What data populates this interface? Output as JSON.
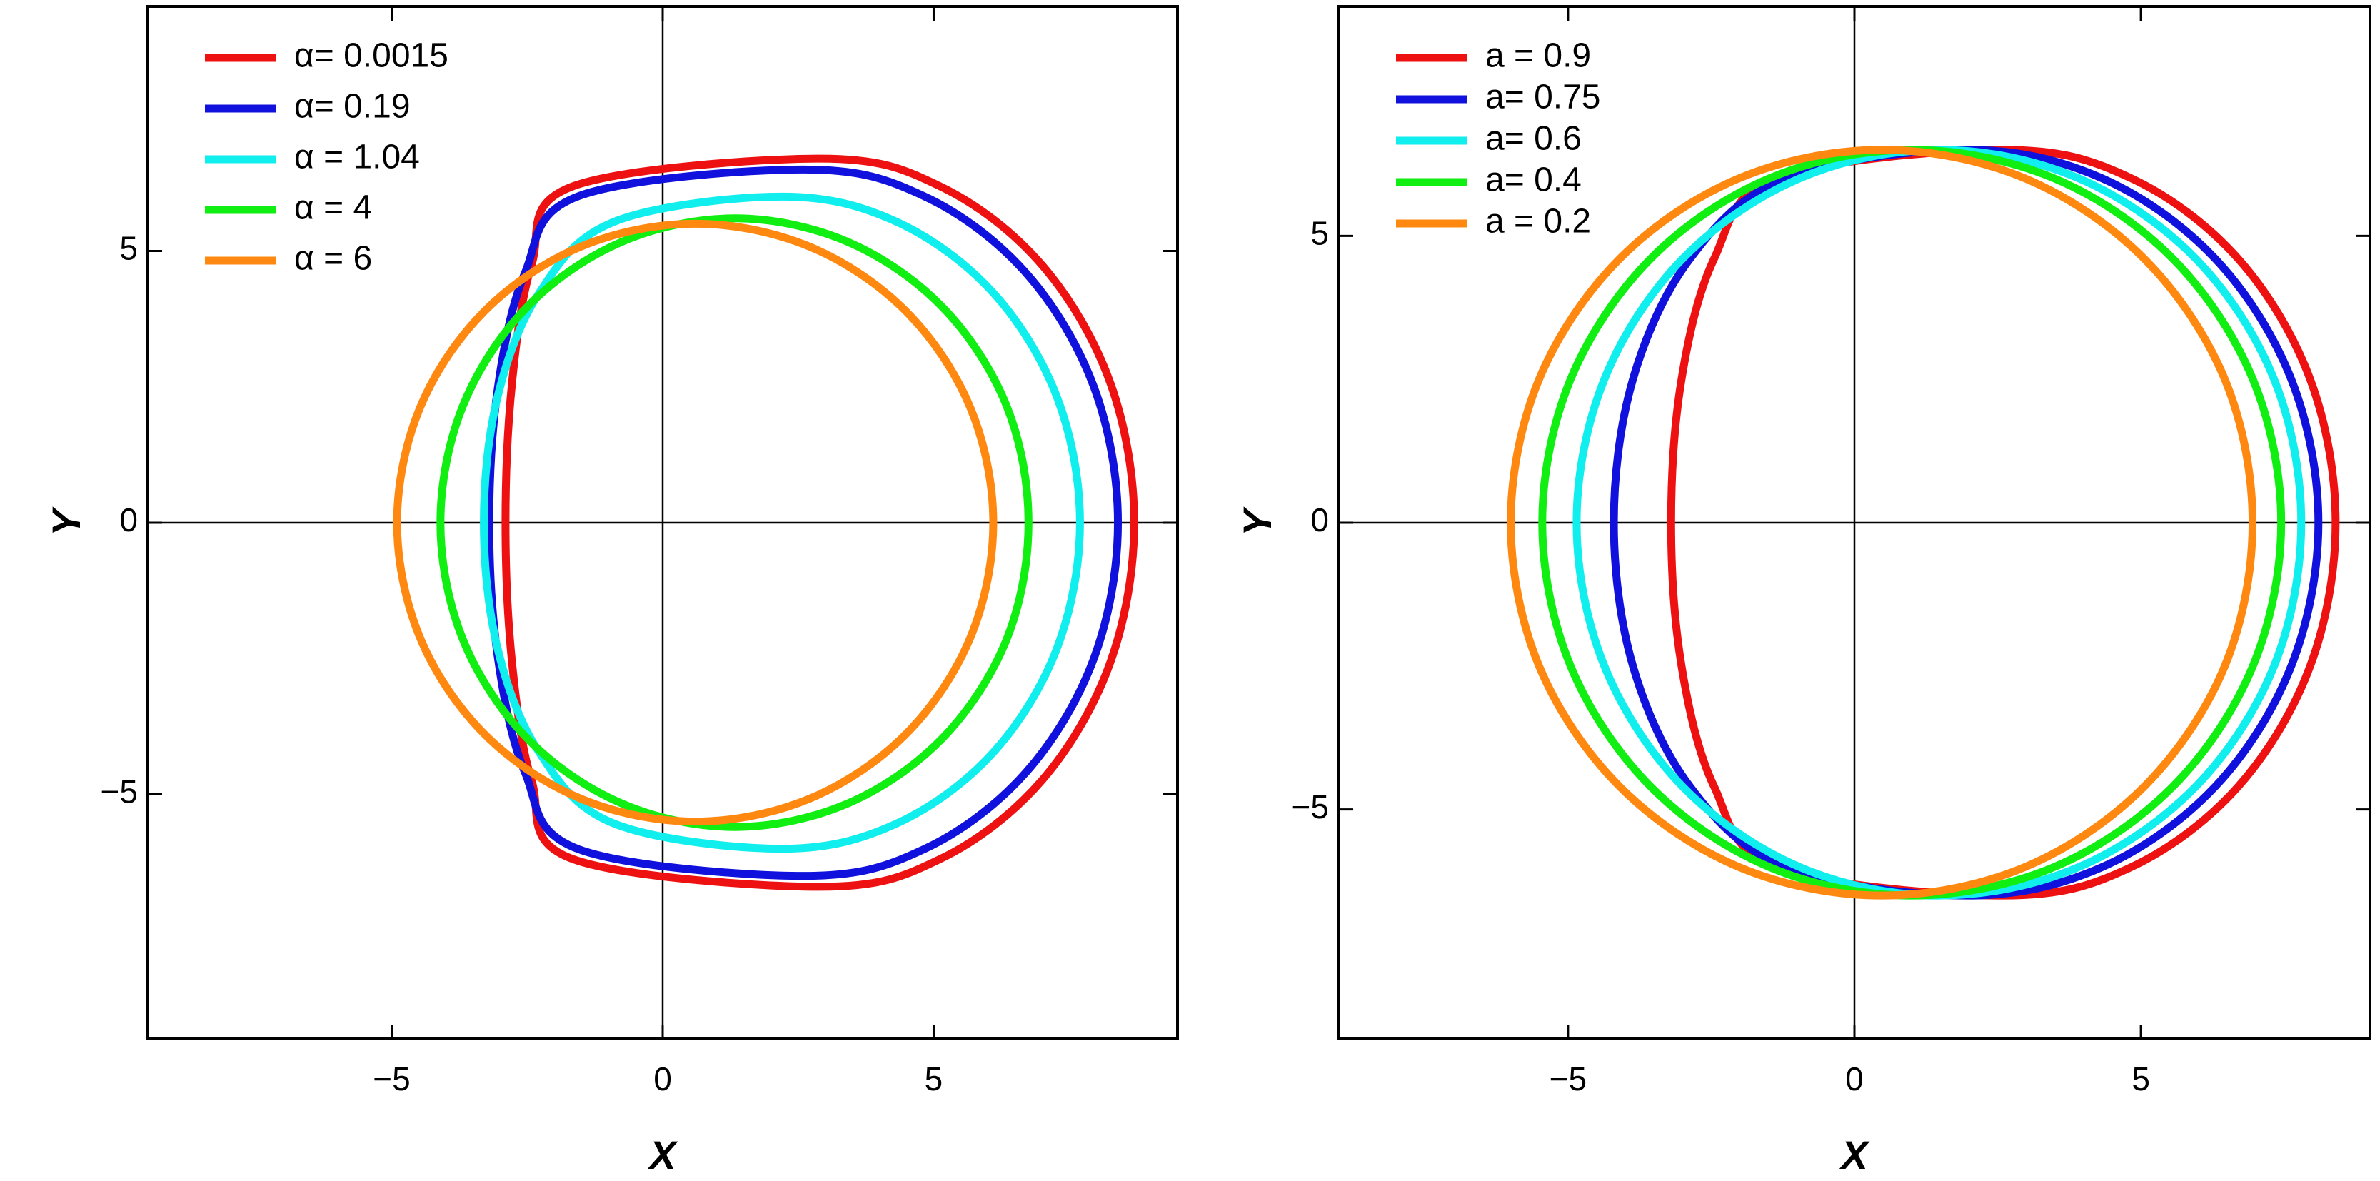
{
  "chart_data": [
    {
      "type": "line",
      "xlabel": "X",
      "ylabel": "Y",
      "legend": "upper left",
      "xlim": [
        -9.5,
        9.5
      ],
      "ylim": [
        -9.5,
        9.5
      ],
      "xticks": [
        {
          "value": -5,
          "label": "−5"
        },
        0,
        5
      ],
      "yticks": [
        {
          "value": -5,
          "label": "−5"
        },
        0,
        5
      ],
      "series": [
        {
          "name": "α= 0.0015",
          "color": "#ee1111",
          "x": [
            8.7,
            8.26,
            7.0,
            5.12,
            2.9,
            -1.66,
            -2.42,
            -2.78,
            -2.9,
            -2.78,
            -2.42,
            -1.66,
            2.9,
            5.12,
            7.0,
            8.26
          ],
          "values": [
            0,
            2.57,
            4.74,
            6.19,
            6.7,
            6.19,
            4.74,
            2.57,
            0,
            -2.57,
            -4.74,
            -6.19,
            -6.7,
            -6.19,
            -4.74,
            -2.57
          ]
        },
        {
          "name": "α= 0.19",
          "color": "#1111dd",
          "x": [
            8.4,
            7.96,
            6.7,
            4.82,
            2.6,
            -1.55,
            -2.54,
            -3.04,
            -3.2,
            -3.04,
            -2.54,
            -1.55,
            2.6,
            4.82,
            6.7,
            7.96
          ],
          "values": [
            0,
            2.49,
            4.6,
            6.01,
            6.5,
            6.01,
            4.6,
            2.49,
            0,
            -2.49,
            -4.6,
            -6.01,
            -6.5,
            -6.01,
            -4.6,
            -2.49
          ]
        },
        {
          "name": "α = 1.04",
          "color": "#11eeee",
          "x": [
            7.7,
            7.28,
            6.09,
            4.31,
            2.2,
            -0.89,
            -2.27,
            -3.05,
            -3.3,
            -3.05,
            -2.27,
            -0.89,
            2.2,
            4.31,
            6.09,
            7.28
          ],
          "values": [
            0,
            2.3,
            4.24,
            5.54,
            6.0,
            5.54,
            4.24,
            2.3,
            0,
            -2.3,
            -4.24,
            -5.54,
            -6.0,
            -5.54,
            -4.24,
            -2.3
          ]
        },
        {
          "name": "α = 4",
          "color": "#11ee11",
          "x": [
            6.75,
            6.35,
            5.17,
            3.41,
            1.33,
            -0.75,
            -2.51,
            -3.69,
            -4.1,
            -3.69,
            -2.51,
            -0.75,
            1.33,
            3.41,
            5.17,
            6.35
          ],
          "values": [
            0,
            2.14,
            3.96,
            5.17,
            5.6,
            5.17,
            3.96,
            2.14,
            0,
            -2.14,
            -3.96,
            -5.17,
            -5.6,
            -5.17,
            -3.96,
            -2.14
          ]
        },
        {
          "name": "α = 6",
          "color": "#ff8811",
          "x": [
            6.1,
            5.68,
            4.49,
            2.71,
            0.6,
            -1.51,
            -3.29,
            -4.48,
            -4.9,
            -4.48,
            -3.29,
            -1.51,
            0.6,
            2.71,
            4.49,
            5.68
          ],
          "values": [
            0,
            2.11,
            3.89,
            5.08,
            5.5,
            5.08,
            3.89,
            2.11,
            0,
            -2.11,
            -3.89,
            -5.08,
            -5.5,
            -5.08,
            -3.89,
            -2.11
          ]
        }
      ]
    },
    {
      "type": "line",
      "xlabel": "X",
      "ylabel": "Y",
      "legend": "upper left",
      "xlim": [
        -9,
        9
      ],
      "ylim": [
        -9,
        9
      ],
      "xticks": [
        {
          "value": -5,
          "label": "−5"
        },
        0,
        5
      ],
      "yticks": [
        {
          "value": -5,
          "label": "−5"
        },
        0,
        5
      ],
      "series": [
        {
          "name": "a = 0.9",
          "color": "#ee1111",
          "x": [
            8.4,
            7.96,
            6.7,
            4.82,
            2.6,
            -1.35,
            -2.45,
            -3.02,
            -3.2,
            -3.02,
            -2.45,
            -1.35,
            2.6,
            4.82,
            6.7,
            7.96
          ],
          "values": [
            0,
            2.49,
            4.6,
            6.01,
            6.5,
            6.01,
            4.6,
            2.49,
            0,
            -2.49,
            -4.6,
            -6.01,
            -6.5,
            -6.01,
            -4.6,
            -2.49
          ]
        },
        {
          "name": "a= 0.75",
          "color": "#1111dd",
          "x": [
            8.1,
            7.63,
            6.3,
            4.31,
            1.95,
            -1.19,
            -2.87,
            -3.87,
            -4.2,
            -3.87,
            -2.87,
            -1.19,
            1.95,
            4.31,
            6.3,
            7.63
          ],
          "values": [
            0,
            2.49,
            4.6,
            6.01,
            6.5,
            6.01,
            4.6,
            2.49,
            0,
            -2.49,
            -4.6,
            -6.01,
            -6.5,
            -6.01,
            -4.6,
            -2.49
          ]
        },
        {
          "name": "a= 0.6",
          "color": "#11eeee",
          "x": [
            7.8,
            7.33,
            5.96,
            3.9,
            1.48,
            -0.94,
            -3.0,
            -4.37,
            -4.85,
            -4.37,
            -3.0,
            -0.94,
            1.48,
            3.9,
            5.96,
            7.33
          ],
          "values": [
            0,
            2.49,
            4.6,
            6.01,
            6.5,
            6.01,
            4.6,
            2.49,
            0,
            -2.49,
            -4.6,
            -6.01,
            -6.5,
            -6.01,
            -4.6,
            -2.49
          ]
        },
        {
          "name": "a= 0.4",
          "color": "#11ee11",
          "x": [
            7.45,
            6.96,
            5.56,
            3.47,
            1.0,
            -1.47,
            -3.56,
            -4.96,
            -5.45,
            -4.96,
            -3.56,
            -1.47,
            1.0,
            3.47,
            5.56,
            6.96
          ],
          "values": [
            0,
            2.49,
            4.6,
            6.01,
            6.5,
            6.01,
            4.6,
            2.49,
            0,
            -2.49,
            -4.6,
            -6.01,
            -6.5,
            -6.01,
            -4.6,
            -2.49
          ]
        },
        {
          "name": "a = 0.2",
          "color": "#ff8811",
          "x": [
            6.95,
            6.47,
            5.06,
            2.96,
            0.48,
            -2.0,
            -4.1,
            -5.51,
            -6.0,
            -5.51,
            -4.1,
            -2.0,
            0.48,
            2.96,
            5.06,
            6.47
          ],
          "values": [
            0,
            2.49,
            4.6,
            6.01,
            6.5,
            6.01,
            4.6,
            2.49,
            0,
            -2.49,
            -4.6,
            -6.01,
            -6.5,
            -6.01,
            -4.6,
            -2.49
          ]
        }
      ]
    }
  ]
}
